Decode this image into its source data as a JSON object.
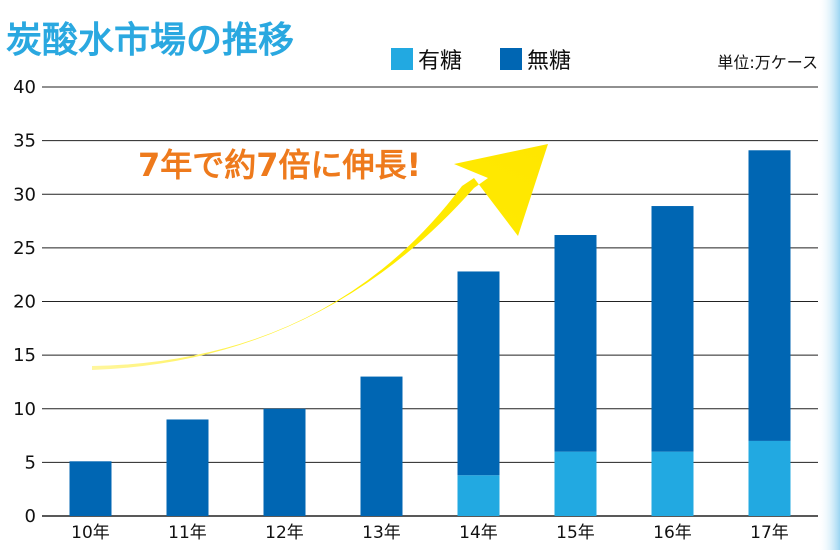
{
  "chart_data": {
    "type": "bar",
    "stacked": true,
    "title": "炭酸水市場の推移",
    "unit": "単位:万ケース",
    "annotation": "7年で約7倍に伸長!",
    "categories": [
      "10年",
      "11年",
      "12年",
      "13年",
      "14年",
      "15年",
      "16年",
      "17年"
    ],
    "series": [
      {
        "name": "有糖",
        "color": "#22a9e1",
        "values": [
          0,
          0,
          0,
          0,
          3.8,
          6.0,
          6.0,
          7.0
        ]
      },
      {
        "name": "無糖",
        "color": "#0066b3",
        "values": [
          5.1,
          9.0,
          10.0,
          13.0,
          19.0,
          20.2,
          22.9,
          27.1
        ]
      }
    ],
    "ylim": [
      0,
      40
    ],
    "yticks": [
      "0",
      "5",
      "10",
      "15",
      "20",
      "25",
      "30",
      "35",
      "40"
    ],
    "grid": true,
    "legend": "top-center"
  }
}
